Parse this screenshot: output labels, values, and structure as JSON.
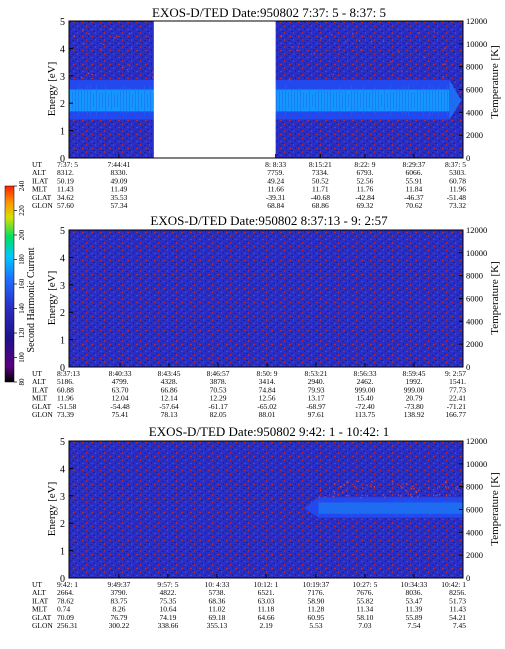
{
  "colors": {
    "plot_bg": "#2a2ec2",
    "noise_dark": "#1b1f9a",
    "noise_red": "#b02a3a",
    "band_mid": "#1f6cf0",
    "band_bright": "#1496ff",
    "band_blue": "#2248ee",
    "speckle": "#e2463c",
    "gap": "#ffffff"
  },
  "colorbar": {
    "label": "Second Harmonic Current",
    "ticks": [
      "80",
      "100",
      "120",
      "140",
      "160",
      "180",
      "200",
      "220",
      "240"
    ],
    "colors": [
      "#000000",
      "#5a0080",
      "#20108a",
      "#2a2ec2",
      "#1e6cff",
      "#00c8ff",
      "#00e060",
      "#d8e000",
      "#ff9000",
      "#ff2000"
    ]
  },
  "table_row_labels": [
    "UT",
    "ALT",
    "ILAT",
    "MLT",
    "GLAT",
    "GLON"
  ],
  "chart_data": [
    {
      "type": "heatmap",
      "title": "EXOS-D/TED   Date:950802   7:37: 5 - 8:37: 5",
      "ylabel": "Energy [eV]",
      "y2label": "Temperature [K]",
      "ylim": [
        0,
        5
      ],
      "y2lim": [
        0,
        12000
      ],
      "yticks": [
        "0",
        "1",
        "2",
        "3",
        "4",
        "5"
      ],
      "y2ticks": [
        "0",
        "2000",
        "4000",
        "6000",
        "8000",
        "10000",
        "12000"
      ],
      "x_ticks": [
        "7:37: 5",
        "7:44:41",
        "8: 8:33",
        "8:15:21",
        "8:22: 9",
        "8:29:37",
        "8:37: 5"
      ],
      "data_gap": [
        "7:50",
        "8: 8:33"
      ],
      "band": {
        "center_energy": 2.1,
        "low_energy": 1.4,
        "high_energy": 2.85,
        "ends_near": "8:35"
      },
      "table": {
        "UT": [
          "7:37: 5",
          "7:44:41",
          "8: 8:33",
          "8:15:21",
          "8:22: 9",
          "8:29:37",
          "8:37: 5"
        ],
        "ALT": [
          "8312.",
          "8330.",
          "7759.",
          "7334.",
          "6793.",
          "6066.",
          "5303."
        ],
        "ILAT": [
          "50.19",
          "49.09",
          "49.24",
          "50.52",
          "52.56",
          "55.91",
          "60.78"
        ],
        "MLT": [
          "11.43",
          "11.49",
          "11.66",
          "11.71",
          "11.76",
          "11.84",
          "11.96"
        ],
        "GLAT": [
          "34.62",
          "35.53",
          "-39.31",
          "-40.68",
          "-42.84",
          "-46.37",
          "-51.48"
        ],
        "GLON": [
          "57.60",
          "57.34",
          "68.84",
          "68.86",
          "69.32",
          "70.62",
          "73.32"
        ]
      }
    },
    {
      "type": "heatmap",
      "title": "EXOS-D/TED   Date:950802   8:37:13 - 9: 2:57",
      "ylabel": "Energy [eV]",
      "y2label": "Temperature [K]",
      "ylim": [
        0,
        5
      ],
      "y2lim": [
        0,
        12000
      ],
      "yticks": [
        "0",
        "1",
        "2",
        "3",
        "4",
        "5"
      ],
      "y2ticks": [
        "0",
        "2000",
        "4000",
        "6000",
        "8000",
        "10000",
        "12000"
      ],
      "x_ticks": [
        "8:37:13",
        "8:40:33",
        "8:43:45",
        "8:46:57",
        "8:50: 9",
        "8:53:21",
        "8:56:33",
        "8:59:45",
        "9: 2:57"
      ],
      "table": {
        "UT": [
          "8:37:13",
          "8:40:33",
          "8:43:45",
          "8:46:57",
          "8:50: 9",
          "8:53:21",
          "8:56:33",
          "8:59:45",
          "9: 2:57"
        ],
        "ALT": [
          "5186.",
          "4799.",
          "4328.",
          "3878.",
          "3414.",
          "2940.",
          "2462.",
          "1992.",
          "1541."
        ],
        "ILAT": [
          "60.88",
          "63.70",
          "66.86",
          "70.53",
          "74.84",
          "79.93",
          "999.00",
          "999.00",
          "77.73"
        ],
        "MLT": [
          "11.96",
          "12.04",
          "12.14",
          "12.29",
          "12.56",
          "13.17",
          "15.40",
          "20.79",
          "22.41"
        ],
        "GLAT": [
          "-51.58",
          "-54.48",
          "-57.64",
          "-61.17",
          "-65.02",
          "-68.97",
          "-72.40",
          "-73.80",
          "-71.21"
        ],
        "GLON": [
          "73.39",
          "75.41",
          "78.13",
          "82.05",
          "88.01",
          "97.61",
          "113.75",
          "138.92",
          "166.77"
        ]
      }
    },
    {
      "type": "heatmap",
      "title": "EXOS-D/TED   Date:950802   9:42: 1 - 10:42: 1",
      "ylabel": "Energy [eV]",
      "y2label": "Temperature [K]",
      "ylim": [
        0,
        5
      ],
      "y2lim": [
        0,
        12000
      ],
      "yticks": [
        "0",
        "1",
        "2",
        "3",
        "4",
        "5"
      ],
      "y2ticks": [
        "0",
        "2000",
        "4000",
        "6000",
        "8000",
        "10000",
        "12000"
      ],
      "x_ticks": [
        "9:42: 1",
        "9:49:37",
        "9:57: 5",
        "10: 4:33",
        "10:12: 1",
        "10:19:37",
        "10:27: 5",
        "10:34:33",
        "10:42: 1"
      ],
      "band": {
        "center_energy": 2.55,
        "low_energy": 2.2,
        "high_energy": 2.95,
        "starts_near": "10:20"
      },
      "table": {
        "UT": [
          "9:42: 1",
          "9:49:37",
          "9:57: 5",
          "10: 4:33",
          "10:12: 1",
          "10:19:37",
          "10:27: 5",
          "10:34:33",
          "10:42: 1"
        ],
        "ALT": [
          "2664.",
          "3790.",
          "4822.",
          "5738.",
          "6521.",
          "7176.",
          "7676.",
          "8036.",
          "8256."
        ],
        "ILAT": [
          "78.62",
          "83.75",
          "75.35",
          "68.36",
          "63.03",
          "58.90",
          "55.82",
          "53.47",
          "51.73"
        ],
        "MLT": [
          "0.74",
          "8.26",
          "10.64",
          "11.02",
          "11.18",
          "11.28",
          "11.34",
          "11.39",
          "11.43"
        ],
        "GLAT": [
          "70.09",
          "76.79",
          "74.19",
          "69.18",
          "64.66",
          "60.95",
          "58.10",
          "55.89",
          "54.21"
        ],
        "GLON": [
          "256.31",
          "300.22",
          "338.66",
          "355.13",
          "2.19",
          "5.53",
          "7.03",
          "7.54",
          "7.45"
        ]
      }
    }
  ]
}
